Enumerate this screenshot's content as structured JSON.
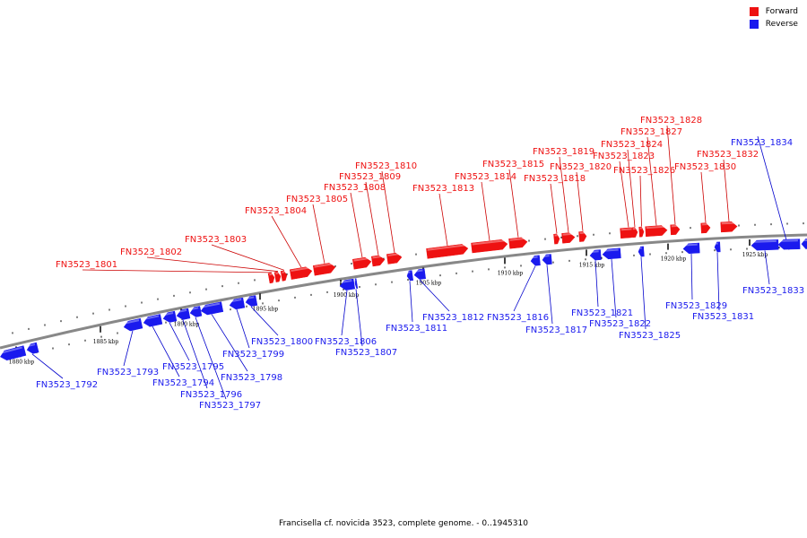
{
  "legend": {
    "forward_label": "Forward",
    "reverse_label": "Reverse",
    "forward_color": "#ee1111",
    "reverse_color": "#1a1aee"
  },
  "footer_text": "Francisella cf. novicida 3523, complete genome. - 0..1945310",
  "colors": {
    "backbone": "#888888",
    "leader_forward": "#cc0000",
    "leader_reverse": "#0000cc"
  },
  "ticks": [
    {
      "label": "1880 kbp"
    },
    {
      "label": "1885 kbp"
    },
    {
      "label": "1890 kbp"
    },
    {
      "label": "1895 kbp"
    },
    {
      "label": "1900 kbp"
    },
    {
      "label": "1905 kbp"
    },
    {
      "label": "1910 kbp"
    },
    {
      "label": "1915 kbp"
    },
    {
      "label": "1920 kbp"
    },
    {
      "label": "1925 kbp"
    }
  ],
  "genes": [
    {
      "name": "FN3523_1792",
      "strand": "reverse"
    },
    {
      "name": "FN3523_1793",
      "strand": "reverse"
    },
    {
      "name": "FN3523_1794",
      "strand": "reverse"
    },
    {
      "name": "FN3523_1795",
      "strand": "reverse"
    },
    {
      "name": "FN3523_1796",
      "strand": "reverse"
    },
    {
      "name": "FN3523_1797",
      "strand": "reverse"
    },
    {
      "name": "FN3523_1798",
      "strand": "reverse"
    },
    {
      "name": "FN3523_1799",
      "strand": "reverse"
    },
    {
      "name": "FN3523_1800",
      "strand": "reverse"
    },
    {
      "name": "FN3523_1801",
      "strand": "forward"
    },
    {
      "name": "FN3523_1802",
      "strand": "forward"
    },
    {
      "name": "FN3523_1803",
      "strand": "forward"
    },
    {
      "name": "FN3523_1804",
      "strand": "forward"
    },
    {
      "name": "FN3523_1805",
      "strand": "forward"
    },
    {
      "name": "FN3523_1806",
      "strand": "reverse"
    },
    {
      "name": "FN3523_1807",
      "strand": "reverse"
    },
    {
      "name": "FN3523_1808",
      "strand": "forward"
    },
    {
      "name": "FN3523_1809",
      "strand": "forward"
    },
    {
      "name": "FN3523_1810",
      "strand": "forward"
    },
    {
      "name": "FN3523_1811",
      "strand": "reverse"
    },
    {
      "name": "FN3523_1812",
      "strand": "reverse"
    },
    {
      "name": "FN3523_1813",
      "strand": "forward"
    },
    {
      "name": "FN3523_1814",
      "strand": "forward"
    },
    {
      "name": "FN3523_1815",
      "strand": "forward"
    },
    {
      "name": "FN3523_1816",
      "strand": "reverse"
    },
    {
      "name": "FN3523_1817",
      "strand": "reverse"
    },
    {
      "name": "FN3523_1818",
      "strand": "forward"
    },
    {
      "name": "FN3523_1819",
      "strand": "forward"
    },
    {
      "name": "FN3523_1820",
      "strand": "forward"
    },
    {
      "name": "FN3523_1821",
      "strand": "reverse"
    },
    {
      "name": "FN3523_1822",
      "strand": "reverse"
    },
    {
      "name": "FN3523_1823",
      "strand": "forward"
    },
    {
      "name": "FN3523_1824",
      "strand": "forward"
    },
    {
      "name": "FN3523_1825",
      "strand": "reverse"
    },
    {
      "name": "FN3523_1826",
      "strand": "forward"
    },
    {
      "name": "FN3523_1827",
      "strand": "forward"
    },
    {
      "name": "FN3523_1828",
      "strand": "forward"
    },
    {
      "name": "FN3523_1829",
      "strand": "reverse"
    },
    {
      "name": "FN3523_1830",
      "strand": "forward"
    },
    {
      "name": "FN3523_1831",
      "strand": "reverse"
    },
    {
      "name": "FN3523_1832",
      "strand": "forward"
    },
    {
      "name": "FN3523_1833",
      "strand": "reverse"
    },
    {
      "name": "FN3523_1834",
      "strand": "reverse"
    }
  ]
}
